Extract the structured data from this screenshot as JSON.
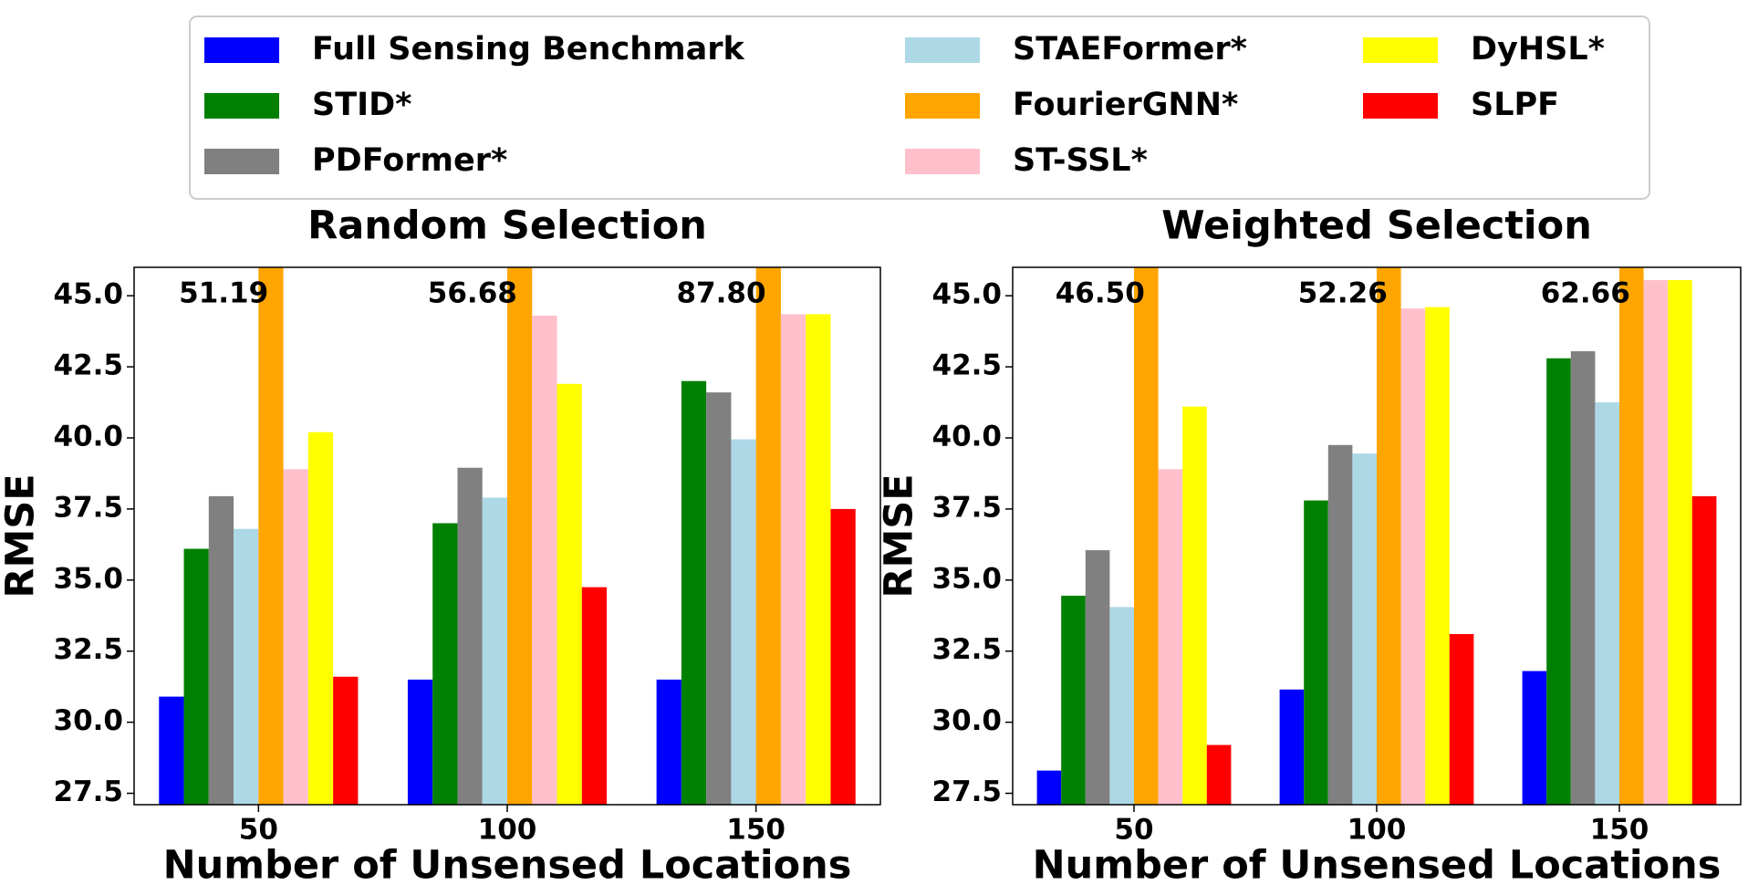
{
  "chart_data": [
    {
      "type": "bar",
      "title": "Random Selection",
      "xlabel": "Number of Unsensed Locations",
      "ylabel": "RMSE",
      "categories": [
        "50",
        "100",
        "150"
      ],
      "ylim": [
        27.1,
        46
      ],
      "yticks": [
        27.5,
        {
          "value": 30,
          "label": "30.0"
        },
        32.5,
        {
          "value": 35,
          "label": "35.0"
        },
        37.5,
        {
          "value": 40,
          "label": "40.0"
        },
        42.5,
        {
          "value": 45,
          "label": "45.0"
        }
      ],
      "series": [
        {
          "name": "Full Sensing Benchmark",
          "color": "#0000ff",
          "values": [
            30.9,
            31.5,
            31.5
          ]
        },
        {
          "name": "STID*",
          "color": "#008000",
          "values": [
            36.1,
            37.0,
            42.0
          ]
        },
        {
          "name": "PDFormer*",
          "color": "#808080",
          "values": [
            37.95,
            38.95,
            41.6
          ]
        },
        {
          "name": "STAEFormer*",
          "color": "#add8e6",
          "values": [
            36.8,
            37.9,
            39.95
          ]
        },
        {
          "name": "FourierGNN*",
          "color": "#ffa500",
          "values": [
            51.19,
            56.68,
            87.8
          ],
          "value_labels": [
            "51.19",
            "56.68",
            "87.80"
          ]
        },
        {
          "name": "ST-SSL*",
          "color": "#ffc0cb",
          "values": [
            38.9,
            44.3,
            44.35
          ]
        },
        {
          "name": "DyHSL*",
          "color": "#ffff00",
          "values": [
            40.2,
            41.9,
            44.35
          ]
        },
        {
          "name": "SLPF",
          "color": "#ff0000",
          "values": [
            31.6,
            34.75,
            37.5
          ]
        }
      ]
    },
    {
      "type": "bar",
      "title": "Weighted Selection",
      "xlabel": "Number of Unsensed Locations",
      "ylabel": "RMSE",
      "categories": [
        "50",
        "100",
        "150"
      ],
      "ylim": [
        27.1,
        46
      ],
      "yticks": [
        27.5,
        {
          "value": 30,
          "label": "30.0"
        },
        32.5,
        {
          "value": 35,
          "label": "35.0"
        },
        37.5,
        {
          "value": 40,
          "label": "40.0"
        },
        42.5,
        {
          "value": 45,
          "label": "45.0"
        }
      ],
      "series": [
        {
          "values": [
            28.3,
            31.15,
            31.8
          ]
        },
        {
          "values": [
            34.45,
            37.8,
            42.8
          ]
        },
        {
          "values": [
            36.05,
            39.75,
            43.05
          ]
        },
        {
          "values": [
            34.05,
            39.45,
            41.25
          ]
        },
        {
          "values": [
            46.5,
            52.26,
            62.66
          ],
          "value_labels": [
            "46.50",
            "52.26",
            "62.66"
          ]
        },
        {
          "values": [
            38.9,
            44.55,
            45.55
          ]
        },
        {
          "values": [
            41.1,
            44.6,
            45.55
          ]
        },
        {
          "values": [
            29.2,
            33.1,
            37.95
          ]
        }
      ]
    }
  ]
}
